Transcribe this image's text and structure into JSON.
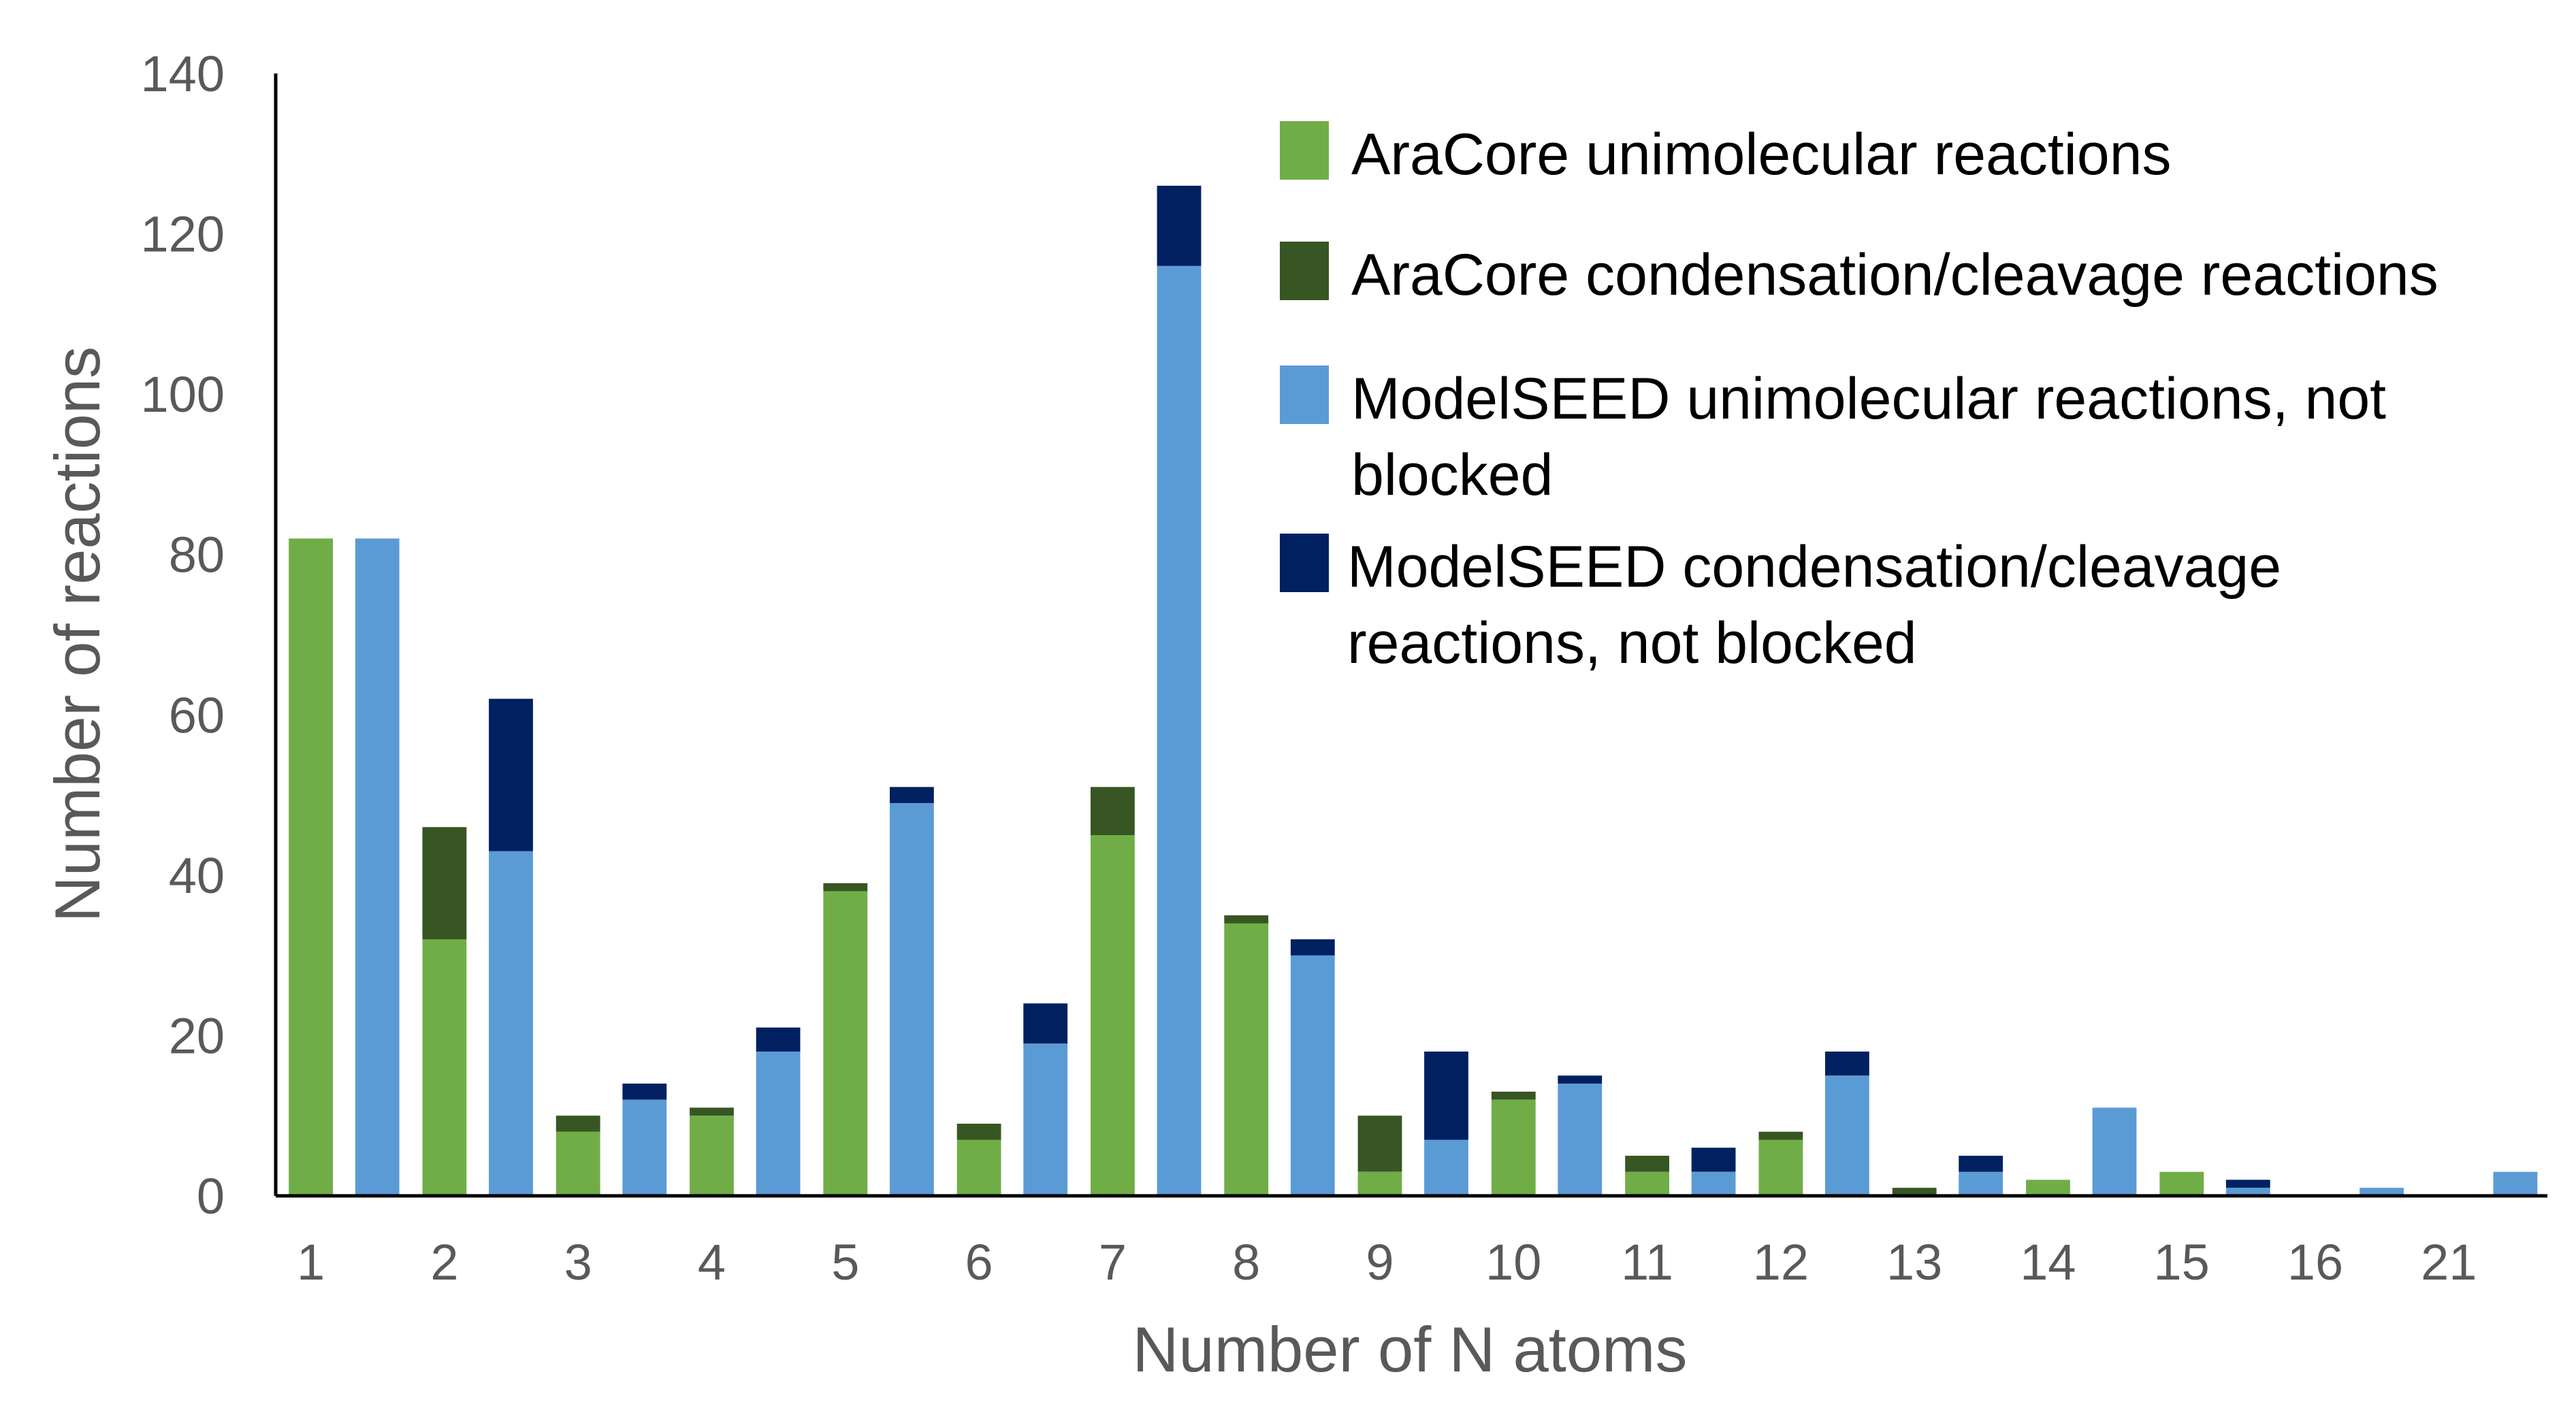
{
  "chart_data": {
    "type": "bar",
    "stacked": true,
    "xlabel": "Number of N atoms",
    "ylabel": "Number of reactions",
    "ylim": [
      0,
      140
    ],
    "yticks": [
      0,
      20,
      40,
      60,
      80,
      100,
      120,
      140
    ],
    "categories": [
      "1",
      "2",
      "3",
      "4",
      "5",
      "6",
      "7",
      "8",
      "9",
      "10",
      "11",
      "12",
      "13",
      "14",
      "15",
      "16",
      "21"
    ],
    "groups": [
      {
        "name": "AraCore",
        "series": [
          {
            "name": "AraCore unimolecular reactions",
            "color": "#70ad47",
            "values": [
              82,
              32,
              8,
              10,
              38,
              7,
              45,
              34,
              3,
              12,
              3,
              7,
              0,
              2,
              3,
              0,
              0
            ]
          },
          {
            "name": "AraCore condensation/cleavage reactions",
            "color": "#375623",
            "values": [
              0,
              14,
              2,
              1,
              1,
              2,
              6,
              1,
              7,
              1,
              2,
              1,
              1,
              0,
              0,
              0,
              0
            ]
          }
        ]
      },
      {
        "name": "ModelSEED",
        "series": [
          {
            "name": "ModelSEED unimolecular reactions, not blocked",
            "color": "#5b9bd5",
            "values": [
              82,
              43,
              12,
              18,
              49,
              19,
              116,
              30,
              7,
              14,
              3,
              15,
              3,
              11,
              1,
              1,
              3
            ]
          },
          {
            "name": "ModelSEED condensation/cleavage reactions, not blocked",
            "color": "#002060",
            "values": [
              0,
              19,
              2,
              3,
              2,
              5,
              10,
              2,
              11,
              1,
              3,
              3,
              2,
              0,
              1,
              0,
              0
            ]
          }
        ]
      }
    ],
    "legend": {
      "position": "top-right",
      "entries": [
        {
          "lines": [
            "AraCore unimolecular reactions"
          ],
          "color": "#70ad47"
        },
        {
          "lines": [
            "AraCore condensation/cleavage reactions"
          ],
          "color": "#375623"
        },
        {
          "lines": [
            "ModelSEED unimolecular reactions, not",
            "blocked"
          ],
          "color": "#5b9bd5"
        },
        {
          "lines": [
            "ModelSEED condensation/cleavage",
            "reactions, not blocked"
          ],
          "color": "#002060"
        }
      ]
    }
  }
}
